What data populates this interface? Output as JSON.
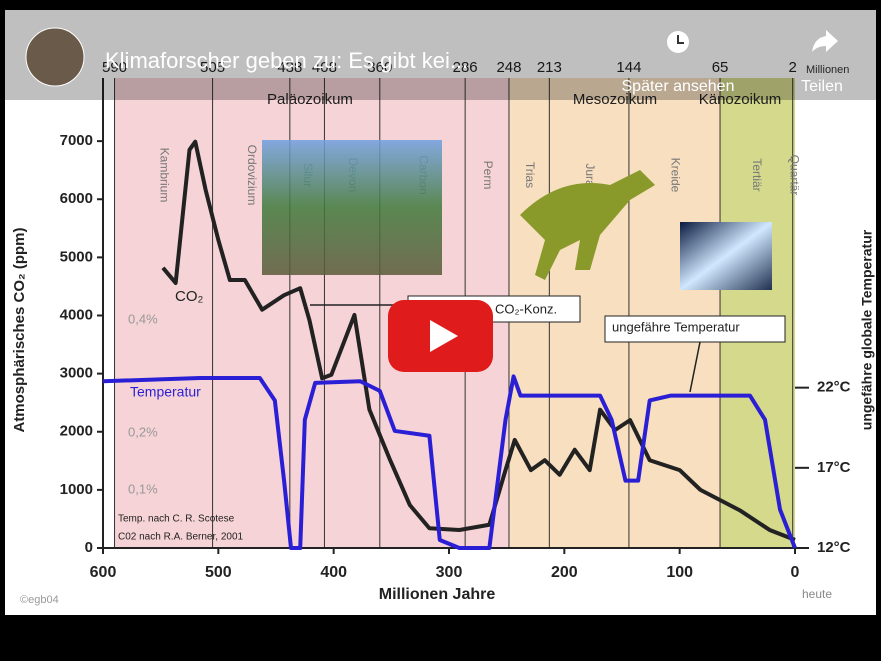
{
  "video": {
    "title": "Klimaforscher geben zu: Es gibt kei...",
    "watch_later": "Später ansehen",
    "share": "Teilen"
  },
  "chart_data": {
    "type": "line",
    "y_label": "Atmosphärisches CO₂ (ppm)",
    "y2_label": "ungefähre globale Temperatur",
    "x_label": "Millionen Jahre",
    "x_end_label": "heute",
    "top_unit": "Millionen",
    "xlim": [
      600,
      0
    ],
    "xticks": [
      600,
      500,
      400,
      300,
      200,
      100,
      0
    ],
    "ylim": [
      0,
      8000
    ],
    "yticks": [
      0,
      1000,
      2000,
      3000,
      4000,
      5000,
      6000,
      7000
    ],
    "y2lim": [
      12,
      41
    ],
    "y2ticks": [
      {
        "value": 12,
        "label": "12°C"
      },
      {
        "value": 17,
        "label": "17°C"
      },
      {
        "value": 22,
        "label": "22°C"
      }
    ],
    "boundaries": [
      590,
      505,
      438,
      408,
      360,
      286,
      248,
      213,
      144,
      65,
      2
    ],
    "periods": [
      "Kambrium",
      "Ordovizium",
      "Silur",
      "Devon",
      "Carbon",
      "Perm",
      "Trias",
      "Jura",
      "Kreide",
      "Tertiär",
      "Quartär"
    ],
    "eras": [
      "Paläozoikum",
      "Mesozoikum",
      "Känozoikum"
    ],
    "annotations": [
      "CO₂",
      "0,4%",
      "0,2%",
      "0,1%",
      "Temperatur",
      "CO₂-Konz.",
      "ungefähre Temperatur",
      "Temp. nach C. R. Scotese",
      "C02 nach R.A. Berner, 2001",
      "©egb04"
    ],
    "series": [
      {
        "name": "CO₂",
        "color": "#222222",
        "x": [
          548,
          537,
          525,
          520,
          511,
          500,
          490,
          477,
          462,
          443,
          429,
          421,
          410,
          402,
          382,
          369,
          351,
          334,
          317,
          291,
          265,
          251,
          243,
          229,
          217,
          204,
          191,
          178,
          169,
          156,
          143,
          126,
          100,
          82,
          48,
          22,
          0
        ],
        "values": [
          4820,
          4560,
          6850,
          6990,
          6160,
          5300,
          4610,
          4610,
          4100,
          4350,
          4470,
          3920,
          2920,
          2980,
          4010,
          2380,
          1510,
          740,
          340,
          310,
          400,
          1340,
          1860,
          1340,
          1510,
          1260,
          1690,
          1340,
          2380,
          2030,
          2200,
          1510,
          1340,
          1000,
          650,
          310,
          140
        ]
      },
      {
        "name": "Temperatur",
        "color": "#2b1fd6",
        "axis": "y2",
        "x": [
          600,
          516,
          464,
          451,
          443,
          437,
          429,
          425,
          416,
          377,
          360,
          347,
          317,
          308,
          291,
          265,
          251,
          244,
          238,
          169,
          159,
          147,
          136,
          126,
          108,
          39,
          26,
          13,
          0
        ],
        "values": [
          22.4,
          22.6,
          22.6,
          21.2,
          16.2,
          12,
          12,
          20,
          22.3,
          22.4,
          21.8,
          19.3,
          19,
          12.5,
          12,
          12,
          20,
          22.7,
          21.5,
          21.5,
          20,
          16.2,
          16.2,
          21.2,
          21.5,
          21.5,
          20,
          14.4,
          12
        ]
      }
    ]
  }
}
